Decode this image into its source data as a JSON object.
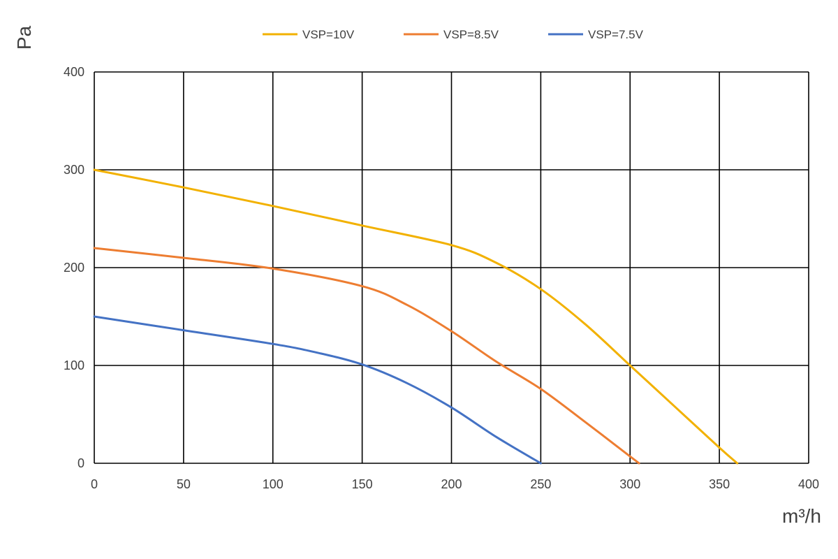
{
  "chart_data": {
    "type": "line",
    "title": "",
    "xlabel": "m³/h",
    "ylabel": "Pa",
    "xlim": [
      0,
      400
    ],
    "ylim": [
      0,
      400
    ],
    "xticks": [
      0,
      50,
      100,
      150,
      200,
      250,
      300,
      350,
      400
    ],
    "yticks": [
      0,
      100,
      200,
      300,
      400
    ],
    "grid": true,
    "legend_position": "top-center",
    "series": [
      {
        "name": "VSP=10V",
        "color": "#F2B100",
        "x": [
          0,
          50,
          100,
          150,
          200,
          225,
          250,
          275,
          300,
          325,
          350,
          360
        ],
        "y": [
          300,
          282,
          263,
          243,
          223,
          205,
          178,
          142,
          100,
          58,
          16,
          0
        ]
      },
      {
        "name": "VSP=8.5V",
        "color": "#ED7D31",
        "x": [
          0,
          50,
          100,
          150,
          175,
          200,
          225,
          250,
          275,
          300,
          305
        ],
        "y": [
          220,
          210,
          199,
          181,
          162,
          135,
          104,
          76,
          42,
          7,
          0
        ]
      },
      {
        "name": "VSP=7.5V",
        "color": "#4472C4",
        "x": [
          0,
          50,
          100,
          125,
          150,
          175,
          200,
          225,
          250
        ],
        "y": [
          150,
          136,
          122,
          113,
          101,
          82,
          57,
          27,
          0
        ]
      }
    ]
  }
}
